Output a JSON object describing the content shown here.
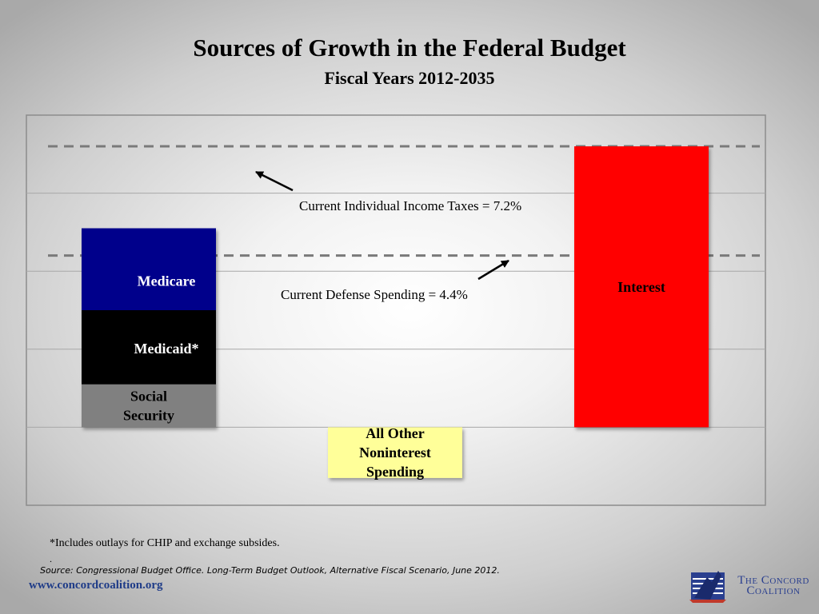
{
  "header": {
    "title": "Sources of Growth in the Federal Budget",
    "subtitle": "Fiscal Years 2012-2035"
  },
  "chart_data": {
    "type": "bar",
    "title": "Sources of Growth in the Federal Budget",
    "subtitle": "Fiscal Years 2012-2035",
    "xlabel": "",
    "ylabel": "",
    "ylim": [
      -2,
      8
    ],
    "grid": true,
    "legend": "none",
    "categories": [
      "Social Security, Medicaid, Medicare",
      "All Other Noninterest Spending",
      "Interest"
    ],
    "stacks": [
      {
        "category": "Social Security, Medicaid, Medicare",
        "segments": [
          {
            "name": "Social Security",
            "label_lines": [
              "Social",
              "Security"
            ],
            "value": 1.1,
            "color": "#808080",
            "text_color": "#000000"
          },
          {
            "name": "Medicaid",
            "label_lines": [
              "Medicaid*"
            ],
            "value": 1.9,
            "color": "#000000",
            "text_color": "#ffffff"
          },
          {
            "name": "Medicare",
            "label_lines": [
              "Medicare"
            ],
            "value": 2.1,
            "color": "#00008b",
            "text_color": "#ffffff"
          }
        ]
      },
      {
        "category": "All Other Noninterest Spending",
        "segments": [
          {
            "name": "All Other Noninterest Spending",
            "label_lines": [
              "All Other",
              "Noninterest",
              "Spending"
            ],
            "value": -1.3,
            "color": "#ffff99",
            "text_color": "#000000"
          }
        ]
      },
      {
        "category": "Interest",
        "segments": [
          {
            "name": "Interest",
            "label_lines": [
              "Interest"
            ],
            "value": 7.2,
            "color": "#ff0000",
            "text_color": "#000000"
          }
        ]
      }
    ],
    "reference_lines": [
      {
        "label": "Current Individual Income Taxes = 7.2%",
        "value": 7.2
      },
      {
        "label": "Current Defense Spending = 4.4%",
        "value": 4.4
      }
    ]
  },
  "footnote": "*Includes outlays for CHIP and exchange subsides.",
  "footnote_dot": ".",
  "source": "Source: Congressional Budget Office. Long-Term Budget Outlook, Alternative Fiscal Scenario, June 2012.",
  "website": "www.concordcoalition.org",
  "logo": {
    "line1": "The Concord",
    "line2": "Coalition",
    "color": "#2a3f8f"
  }
}
